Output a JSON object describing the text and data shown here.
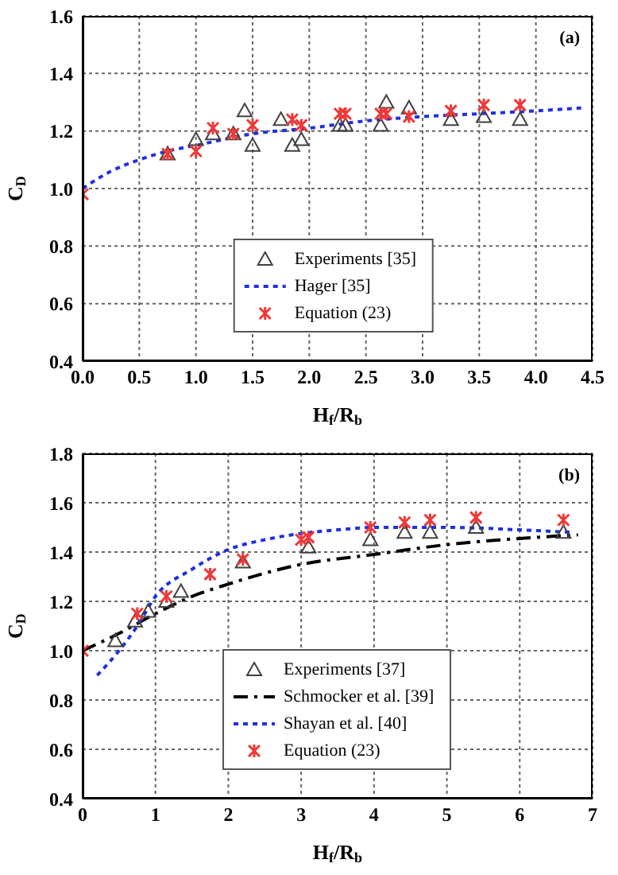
{
  "chart_data": [
    {
      "type": "scatter",
      "annotations": [
        "(a)"
      ],
      "xlabel": "H$_{f}$/R$_{b}$",
      "ylabel": "C$_{D}$",
      "xlim": [
        0,
        4.5
      ],
      "xticks": [
        {
          "value": 0,
          "label": "0.0"
        },
        0.5,
        {
          "value": 1,
          "label": "1.0"
        },
        1.5,
        {
          "value": 2,
          "label": "2.0"
        },
        2.5,
        {
          "value": 3,
          "label": "3.0"
        },
        3.5,
        {
          "value": 4,
          "label": "4.0"
        },
        4.5
      ],
      "ylim": [
        0.4,
        1.6
      ],
      "yticks": [
        0.4,
        0.6,
        0.8,
        {
          "value": 1,
          "label": "1.0"
        },
        1.2,
        1.4,
        1.6
      ],
      "grid": true,
      "legend": "bottom",
      "series": [
        {
          "name": "Experiments [35]",
          "type": "scatter",
          "marker": "triangle",
          "color": "#404040",
          "x": [
            0.75,
            1.0,
            1.15,
            1.33,
            1.43,
            1.5,
            1.75,
            1.85,
            1.93,
            2.27,
            2.32,
            2.63,
            2.68,
            2.88,
            3.25,
            3.54,
            3.86
          ],
          "values": [
            1.12,
            1.17,
            1.19,
            1.19,
            1.27,
            1.15,
            1.24,
            1.15,
            1.17,
            1.22,
            1.22,
            1.22,
            1.3,
            1.28,
            1.24,
            1.25,
            1.24
          ]
        },
        {
          "name": "Hager [35]",
          "type": "line",
          "line_style": "dotted",
          "marker": "none",
          "color": "#1f2fe0",
          "x": [
            0,
            0.25,
            0.5,
            0.75,
            1.0,
            1.5,
            2.0,
            2.5,
            3.0,
            3.5,
            4.0,
            4.4
          ],
          "values": [
            1.0,
            1.06,
            1.1,
            1.13,
            1.15,
            1.19,
            1.21,
            1.235,
            1.25,
            1.26,
            1.27,
            1.28
          ]
        },
        {
          "name": "Equation (23)",
          "marker": "cross",
          "color": "#f03838",
          "x": [
            0,
            0.75,
            1.0,
            1.15,
            1.33,
            1.5,
            1.85,
            1.93,
            2.27,
            2.32,
            2.63,
            2.68,
            2.88,
            3.25,
            3.54,
            3.86
          ],
          "values": [
            0.98,
            1.12,
            1.13,
            1.21,
            1.19,
            1.22,
            1.24,
            1.22,
            1.26,
            1.26,
            1.26,
            1.26,
            1.25,
            1.27,
            1.29,
            1.29
          ]
        }
      ]
    },
    {
      "type": "scatter",
      "annotations": [
        "(b)"
      ],
      "xlabel": "H$_{f}$/R$_{b}$",
      "ylabel": "C$_{D}$",
      "xlim": [
        0,
        7
      ],
      "xticks": [
        0,
        1,
        2,
        3,
        4,
        5,
        6,
        7
      ],
      "ylim": [
        0.4,
        1.8
      ],
      "yticks": [
        0.4,
        0.6,
        0.8,
        {
          "value": 1,
          "label": "1.0"
        },
        1.2,
        1.4,
        1.6,
        1.8
      ],
      "grid": true,
      "legend": "bottom",
      "series": [
        {
          "name": "Experiments [37]",
          "type": "scatter",
          "marker": "triangle",
          "color": "#404040",
          "x": [
            0.45,
            0.72,
            0.9,
            1.15,
            1.35,
            2.2,
            3.1,
            3.95,
            4.42,
            4.77,
            5.4,
            6.6
          ],
          "values": [
            1.04,
            1.12,
            1.16,
            1.2,
            1.24,
            1.36,
            1.42,
            1.45,
            1.48,
            1.48,
            1.5,
            1.48
          ]
        },
        {
          "name": "Schmocker et al. [39]",
          "type": "line",
          "line_style": "dashed",
          "marker": "none",
          "color": "#000000",
          "x": [
            0,
            0.5,
            1.0,
            1.5,
            2,
            3,
            4,
            5,
            6,
            6.8
          ],
          "values": [
            1.0,
            1.07,
            1.15,
            1.22,
            1.27,
            1.35,
            1.39,
            1.43,
            1.455,
            1.47
          ]
        },
        {
          "name": "Shayan et al. [40]",
          "type": "line",
          "line_style": "dotted",
          "marker": "none",
          "color": "#1f2fe0",
          "x": [
            0.2,
            0.5,
            0.75,
            1.0,
            1.5,
            2.0,
            2.5,
            3,
            3.5,
            4,
            5,
            6,
            6.7
          ],
          "values": [
            0.9,
            1.0,
            1.1,
            1.22,
            1.33,
            1.41,
            1.45,
            1.475,
            1.49,
            1.5,
            1.5,
            1.49,
            1.48
          ]
        },
        {
          "name": "Equation (23)",
          "marker": "cross",
          "color": "#f03838",
          "x": [
            0,
            0.75,
            1.15,
            1.75,
            2.2,
            3.0,
            3.1,
            3.95,
            4.42,
            4.77,
            5.4,
            6.6
          ],
          "values": [
            1.0,
            1.15,
            1.22,
            1.31,
            1.37,
            1.45,
            1.46,
            1.5,
            1.52,
            1.53,
            1.54,
            1.53
          ]
        }
      ]
    }
  ]
}
